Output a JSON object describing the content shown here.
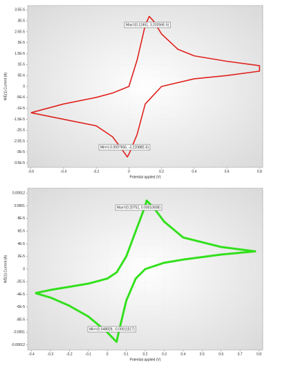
{
  "chart_data": [
    {
      "type": "line",
      "xlabel": "Potential applied (V)",
      "ylabel": "WE(1).Current (A)",
      "color": "#e0201c",
      "grid": true,
      "xlim": [
        -0.62,
        0.82
      ],
      "ylim": [
        -3.7e-05,
        3.7e-05
      ],
      "xticks": [
        -0.6,
        -0.4,
        -0.2,
        0,
        0.2,
        0.4,
        0.6,
        0.8
      ],
      "yticks": [
        {
          "value": 3.5e-05,
          "label": "3.5E-5"
        },
        {
          "value": 3e-05,
          "label": "3E-5"
        },
        {
          "value": 2.5e-05,
          "label": "2.5E-5"
        },
        {
          "value": 2e-05,
          "label": "2E-5"
        },
        {
          "value": 1.5e-05,
          "label": "1.5E-5"
        },
        {
          "value": 1e-05,
          "label": "1E-5"
        },
        {
          "value": 5e-06,
          "label": "5E-6"
        },
        0,
        {
          "value": -5e-06,
          "label": "-5E-6"
        },
        {
          "value": -1e-05,
          "label": "-1E-5"
        },
        {
          "value": -1.5e-05,
          "label": "-1.5E-5"
        },
        {
          "value": -2e-05,
          "label": "-2E-5"
        },
        {
          "value": -2.5e-05,
          "label": "-2.5E-5"
        },
        {
          "value": -3e-05,
          "label": "-3E-5"
        },
        {
          "value": -3.5e-05,
          "label": "-3.5E-5"
        }
      ],
      "x": [
        -0.6,
        -0.4,
        -0.2,
        -0.1,
        0,
        0.05,
        0.1,
        0.12451,
        0.15,
        0.2,
        0.3,
        0.4,
        0.6,
        0.8,
        0.8,
        0.6,
        0.4,
        0.2,
        0.1,
        0.05,
        0,
        -0.0097656,
        -0.05,
        -0.1,
        -0.2,
        -0.4,
        -0.6
      ],
      "values": [
        -1.2e-05,
        -8e-06,
        -5e-06,
        -3e-06,
        0,
        1.2e-05,
        2.8e-05,
        3.20256e-05,
        3e-05,
        2.4e-05,
        1.7e-05,
        1.4e-05,
        1.15e-05,
        9.5e-06,
        7e-06,
        5e-06,
        3.5e-06,
        0,
        -8e-06,
        -2.2e-05,
        -3.1e-05,
        -3.22088e-05,
        -2.8e-05,
        -2.3e-05,
        -1.8e-05,
        -1.5e-05,
        -1.2e-05
      ],
      "annotations": [
        "Max=(0.12451, 3.20256E-5)",
        "Min=(-0.0097656, -3.22088E-5)"
      ]
    },
    {
      "type": "line",
      "xlabel": "Potential applied (V)",
      "ylabel": "WE(1).Current (A)",
      "color": "#33e01c",
      "grid": true,
      "xlim": [
        -0.42,
        0.82
      ],
      "ylim": [
        -0.000128,
        0.000128
      ],
      "xticks": [
        -0.4,
        -0.3,
        -0.2,
        -0.1,
        0,
        0.1,
        0.2,
        0.3,
        0.4,
        0.5,
        0.6,
        0.7,
        0.8
      ],
      "yticks": [
        0.00012,
        0.0001,
        {
          "value": 8e-05,
          "label": "8E-5"
        },
        {
          "value": 6e-05,
          "label": "6E-5"
        },
        {
          "value": 4e-05,
          "label": "4E-5"
        },
        {
          "value": 2e-05,
          "label": "2E-5"
        },
        0,
        {
          "value": -2e-05,
          "label": "-2E-5"
        },
        {
          "value": -4e-05,
          "label": "-4E-5"
        },
        {
          "value": -6e-05,
          "label": "-6E-5"
        },
        {
          "value": -8e-05,
          "label": "-8E-5"
        },
        -0.0001,
        -0.00012
      ],
      "x": [
        -0.38,
        -0.3,
        -0.2,
        -0.1,
        0,
        0.05,
        0.1,
        0.15,
        0.2,
        0.20752,
        0.25,
        0.3,
        0.4,
        0.6,
        0.78,
        0.78,
        0.6,
        0.4,
        0.3,
        0.2,
        0.15,
        0.1,
        0.06,
        0.048828,
        0,
        -0.1,
        -0.2,
        -0.3,
        -0.38
      ],
      "values": [
        -3.8e-05,
        -3.3e-05,
        -2.8e-05,
        -2.3e-05,
        -1.5e-05,
        -5e-06,
        2e-05,
        6e-05,
        0.0001,
        0.00010838,
        9.5e-05,
        7.5e-05,
        5e-05,
        3.5e-05,
        2.8e-05,
        2.8e-05,
        2.3e-05,
        1.5e-05,
        1e-05,
        0,
        -1.5e-05,
        -5e-05,
        -0.0001,
        -0.00011517,
        -0.0001,
        -7.5e-05,
        -5.8e-05,
        -4.5e-05,
        -3.8e-05
      ],
      "annotations": [
        "Max=(0.20752, 0.00010838)",
        "Min=(0.048828, -0.00011517)"
      ]
    }
  ]
}
